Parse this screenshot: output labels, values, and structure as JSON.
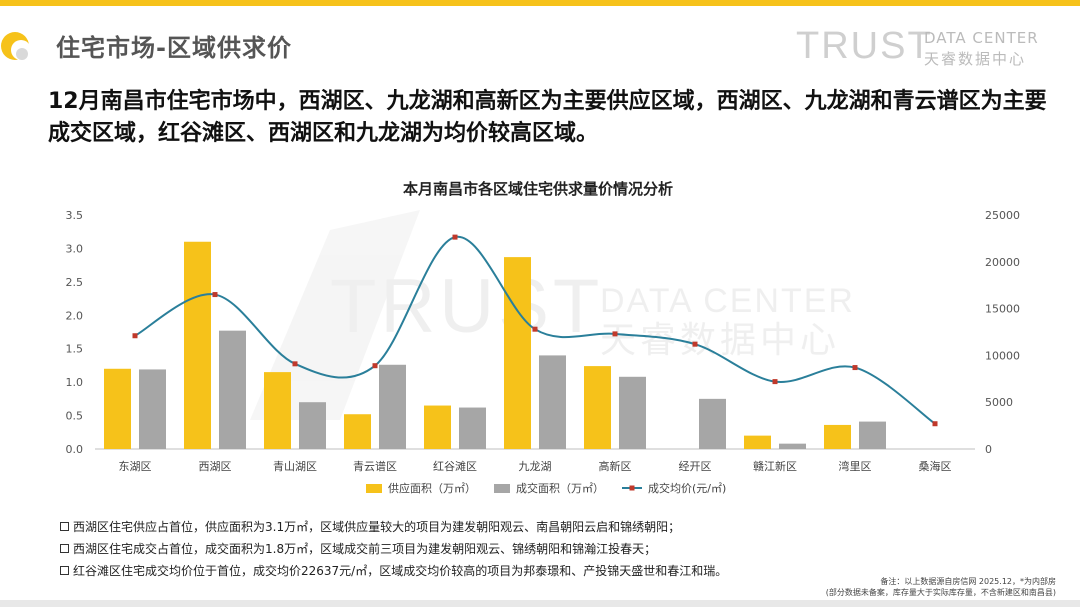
{
  "header": {
    "title": "住宅市场-区域供求价",
    "brand_trust": "TRUST",
    "brand_data_center": "DATA CENTER",
    "brand_cn": "天睿数据中心",
    "accent_color": "#f6c21a"
  },
  "summary": "12月南昌市住宅市场中，西湖区、九龙湖和高新区为主要供应区域，西湖区、九龙湖和青云谱区为主要成交区域，红谷滩区、西湖区和九龙湖为均价较高区域。",
  "watermark": {
    "trust": "TRUST",
    "data_center": "DATA CENTER",
    "cn": "天睿数据中心"
  },
  "chart_data": {
    "type": "bar",
    "title": "本月南昌市各区域住宅供求量价情况分析",
    "categories": [
      "东湖区",
      "西湖区",
      "青山湖区",
      "青云谱区",
      "红谷滩区",
      "九龙湖",
      "高新区",
      "经开区",
      "赣江新区",
      "湾里区",
      "桑海区"
    ],
    "series": [
      {
        "name": "供应面积（万㎡）",
        "type": "bar",
        "axis": "left",
        "color": "#f6c21a",
        "values": [
          1.2,
          3.1,
          1.15,
          0.52,
          0.65,
          2.87,
          1.24,
          null,
          0.2,
          0.36,
          null
        ]
      },
      {
        "name": "成交面积（万㎡）",
        "type": "bar",
        "axis": "left",
        "color": "#a6a6a6",
        "values": [
          1.19,
          1.77,
          0.7,
          1.26,
          0.62,
          1.4,
          1.08,
          0.75,
          0.08,
          0.41,
          null
        ]
      },
      {
        "name": "成交均价(元/㎡)",
        "type": "line",
        "axis": "right",
        "color": "#2a7f9a",
        "marker_color": "#c0392b",
        "values": [
          12100,
          16500,
          9100,
          8900,
          22637,
          12800,
          12300,
          11200,
          7200,
          8700,
          2700
        ]
      }
    ],
    "ylim_left": [
      0,
      3.5
    ],
    "yticks_left": [
      "0.0",
      "0.5",
      "1.0",
      "1.5",
      "2.0",
      "2.5",
      "3.0",
      "3.5"
    ],
    "ylim_right": [
      0,
      25000
    ],
    "yticks_right": [
      "0",
      "5000",
      "10000",
      "15000",
      "20000",
      "25000"
    ],
    "grid": false,
    "legend_position": "bottom"
  },
  "notes": [
    "西湖区住宅供应占首位，供应面积为3.1万㎡，区域供应量较大的项目为建发朝阳观云、南昌朝阳云启和锦绣朝阳；",
    "西湖区住宅成交占首位，成交面积为1.8万㎡，区域成交前三项目为建发朝阳观云、锦绣朝阳和锦瀚江投春天；",
    "红谷滩区住宅成交均价位于首位，成交均价22637元/㎡，区域成交均价较高的项目为邦泰璟和、产投锦天盛世和春江和瑞。"
  ],
  "footnote": [
    "备注：以上数据源自房信网  2025.12，*为内部房",
    "(部分数据未备案，库存量大于实际库存量，不含新建区和南昌县)"
  ]
}
